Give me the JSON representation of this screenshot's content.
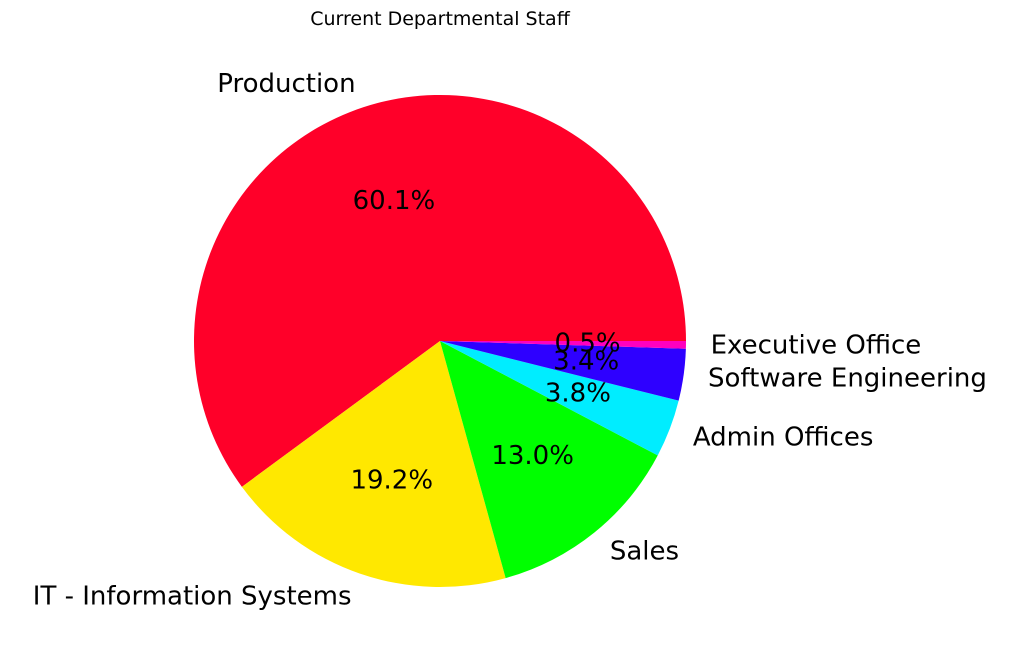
{
  "chart_data": {
    "type": "pie",
    "title": "Current Departmental Staff",
    "slices": [
      {
        "label": "Production",
        "value": 60.1,
        "pct_label": "60.1%",
        "color": "#ff0029"
      },
      {
        "label": "IT - Information Systems",
        "value": 19.2,
        "pct_label": "19.2%",
        "color": "#ffe800"
      },
      {
        "label": "Sales",
        "value": 13.0,
        "pct_label": "13.0%",
        "color": "#00ff00"
      },
      {
        "label": "Admin Offices",
        "value": 3.8,
        "pct_label": "3.8%",
        "color": "#00edff"
      },
      {
        "label": "Software Engineering",
        "value": 3.4,
        "pct_label": "3.4%",
        "color": "#2e00ff"
      },
      {
        "label": "Executive Office",
        "value": 0.5,
        "pct_label": "0.5%",
        "color": "#ff00bf"
      }
    ],
    "start_angle_deg": 0,
    "direction": "counterclockwise"
  }
}
